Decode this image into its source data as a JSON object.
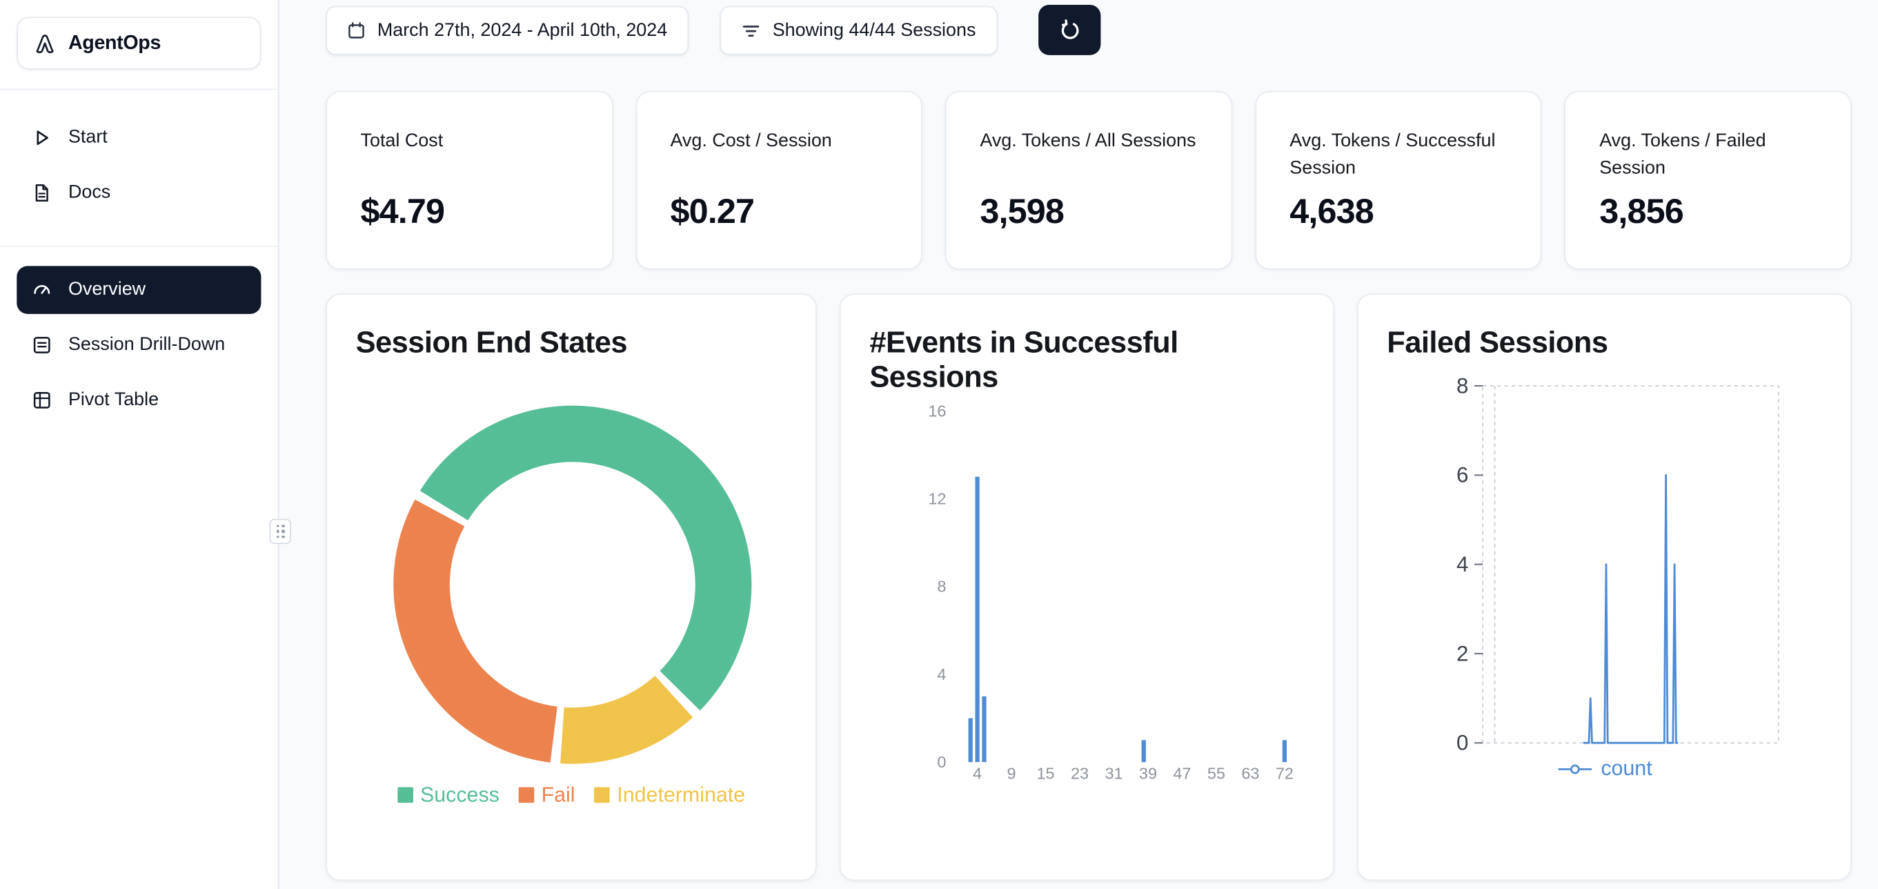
{
  "brand": {
    "name": "AgentOps"
  },
  "sidebar": {
    "top_items": [
      {
        "label": "Start",
        "icon": "play-icon"
      },
      {
        "label": "Docs",
        "icon": "docs-icon"
      }
    ],
    "main_items": [
      {
        "label": "Overview",
        "icon": "gauge-icon",
        "active": true
      },
      {
        "label": "Session Drill-Down",
        "icon": "sessions-icon",
        "active": false
      },
      {
        "label": "Pivot Table",
        "icon": "pivot-icon",
        "active": false
      }
    ]
  },
  "topbar": {
    "date_range": "March 27th, 2024 - April 10th, 2024",
    "sessions_filter": "Showing 44/44 Sessions",
    "refresh_icon": "refresh-icon",
    "calendar_icon": "calendar-icon",
    "filter_icon": "filter-icon"
  },
  "stats": [
    {
      "title": "Total Cost",
      "value": "$4.79"
    },
    {
      "title": "Avg. Cost / Session",
      "value": "$0.27"
    },
    {
      "title": "Avg. Tokens / All Sessions",
      "value": "3,598"
    },
    {
      "title": "Avg. Tokens / Successful Session",
      "value": "4,638"
    },
    {
      "title": "Avg. Tokens / Failed Session",
      "value": "3,856"
    }
  ],
  "ui_colors": {
    "accent_dark": "#101A2C",
    "background": "#F8FAFC",
    "card_border": "#E7EBF1",
    "chart_blue": "#4E8BD6"
  },
  "chart_data": [
    {
      "type": "pie",
      "donut": true,
      "title": "Session End States",
      "start_angle_deg": 300,
      "segments": [
        {
          "label": "Success",
          "pct": 54.5,
          "color": "#55BE96"
        },
        {
          "label": "Indeterminate",
          "pct": 13.7,
          "color": "#F0C44B"
        },
        {
          "label": "Fail",
          "pct": 31.8,
          "color": "#EC834E"
        }
      ],
      "legend": [
        "Success",
        "Fail",
        "Indeterminate"
      ],
      "legend_position": "bottom"
    },
    {
      "type": "bar",
      "title": "#Events in Successful Sessions",
      "xlabel": "",
      "ylabel": "",
      "x_ticks": [
        4,
        9,
        15,
        23,
        31,
        39,
        47,
        55,
        63,
        72
      ],
      "y_ticks": [
        0,
        4,
        8,
        12,
        16
      ],
      "ylim": [
        0,
        16
      ],
      "bars": [
        {
          "x": 3,
          "count": 2
        },
        {
          "x": 4,
          "count": 13
        },
        {
          "x": 5,
          "count": 3
        },
        {
          "x": 38,
          "count": 1
        },
        {
          "x": 72,
          "count": 1
        }
      ],
      "color": "#4E8BD6",
      "grid": "off"
    },
    {
      "type": "line",
      "title": "Failed Sessions",
      "y_ticks": [
        0,
        2,
        4,
        6,
        8
      ],
      "ylim": [
        0,
        8
      ],
      "grid": "dashed-frame",
      "legend": [
        "count"
      ],
      "legend_position": "bottom",
      "color": "#4E8BD6",
      "series": [
        {
          "name": "count",
          "baseline_range": [
            0.34,
            0.66
          ],
          "spikes": [
            {
              "pos": 0.364,
              "value": 1
            },
            {
              "pos": 0.417,
              "value": 4
            },
            {
              "pos": 0.619,
              "value": 6
            },
            {
              "pos": 0.648,
              "value": 4
            }
          ]
        }
      ]
    }
  ]
}
